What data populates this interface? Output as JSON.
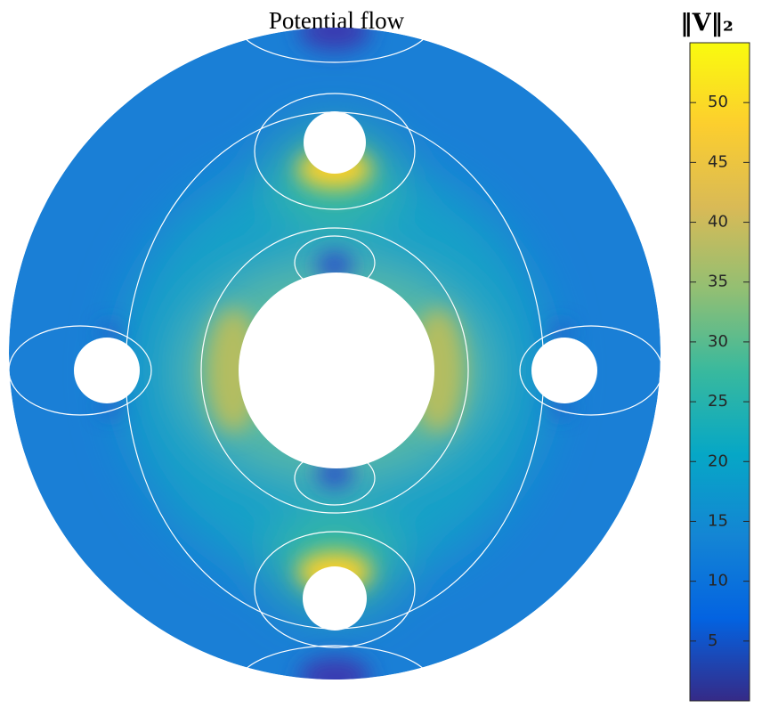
{
  "chart_data": {
    "type": "contour",
    "title": "Potential flow",
    "colorbar_label": "‖V‖₂",
    "clim": [
      0,
      55
    ],
    "cticks": [
      5,
      10,
      15,
      20,
      25,
      30,
      35,
      40,
      45,
      50
    ],
    "colormap": [
      "#352a87",
      "#0363e1",
      "#1485d4",
      "#06a7c6",
      "#38b99e",
      "#92bf73",
      "#d9ba56",
      "#fcce2e",
      "#f9fb0e"
    ]
  }
}
